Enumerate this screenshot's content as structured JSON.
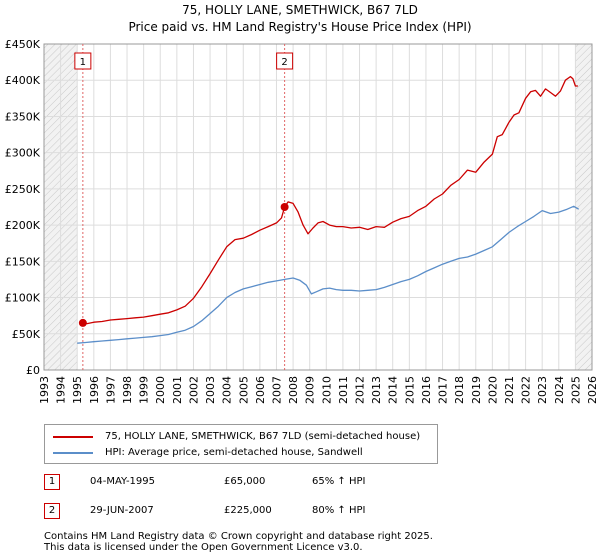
{
  "chart_data": {
    "type": "line",
    "title": "75, HOLLY LANE, SMETHWICK, B67 7LD",
    "subtitle": "Price paid vs. HM Land Registry's House Price Index (HPI)",
    "xlim": [
      1993.0,
      2026.0
    ],
    "ylim": [
      0,
      450000
    ],
    "y_ticks": [
      0,
      50000,
      100000,
      150000,
      200000,
      250000,
      300000,
      350000,
      400000,
      450000
    ],
    "y_tick_labels": [
      "£0",
      "£50K",
      "£100K",
      "£150K",
      "£200K",
      "£250K",
      "£300K",
      "£350K",
      "£400K",
      "£450K"
    ],
    "x_ticks": [
      1993,
      1994,
      1995,
      1996,
      1997,
      1998,
      1999,
      2000,
      2001,
      2002,
      2003,
      2004,
      2005,
      2006,
      2007,
      2008,
      2009,
      2010,
      2011,
      2012,
      2013,
      2014,
      2015,
      2016,
      2017,
      2018,
      2019,
      2020,
      2021,
      2022,
      2023,
      2024,
      2025,
      2026
    ],
    "x_tick_labels": [
      "1993",
      "1994",
      "1995",
      "1996",
      "1997",
      "1998",
      "1999",
      "2000",
      "2001",
      "2002",
      "2003",
      "2004",
      "2005",
      "2006",
      "2007",
      "2008",
      "2009",
      "2010",
      "2011",
      "2012",
      "2013",
      "2014",
      "2015",
      "2016",
      "2017",
      "2018",
      "2019",
      "2020",
      "2021",
      "2022",
      "2023",
      "2024",
      "2025",
      "2026"
    ],
    "hatched_ranges": [
      [
        1993.0,
        1995.0
      ],
      [
        2025.0,
        2026.0
      ]
    ],
    "series": [
      {
        "name": "75, HOLLY LANE, SMETHWICK, B67 7LD (semi-detached house)",
        "color": "#cc0000",
        "x": [
          1995.34,
          1995.6,
          1996.0,
          1996.5,
          1997.0,
          1997.5,
          1998.0,
          1998.5,
          1999.0,
          1999.5,
          2000.0,
          2000.5,
          2001.0,
          2001.5,
          2002.0,
          2002.5,
          2003.0,
          2003.5,
          2004.0,
          2004.5,
          2005.0,
          2005.5,
          2006.0,
          2006.5,
          2007.0,
          2007.3,
          2007.49,
          2007.7,
          2008.0,
          2008.3,
          2008.6,
          2008.9,
          2009.2,
          2009.5,
          2009.8,
          2010.2,
          2010.6,
          2011.0,
          2011.5,
          2012.0,
          2012.5,
          2013.0,
          2013.5,
          2014.0,
          2014.5,
          2015.0,
          2015.5,
          2016.0,
          2016.5,
          2017.0,
          2017.5,
          2018.0,
          2018.5,
          2019.0,
          2019.5,
          2020.0,
          2020.3,
          2020.6,
          2021.0,
          2021.3,
          2021.6,
          2022.0,
          2022.3,
          2022.6,
          2022.9,
          2023.2,
          2023.5,
          2023.8,
          2024.1,
          2024.4,
          2024.7,
          2024.85,
          2025.0,
          2025.15
        ],
        "y": [
          65000,
          64000,
          66000,
          67000,
          69000,
          70000,
          71000,
          72000,
          73000,
          75000,
          77000,
          79000,
          83000,
          88000,
          99000,
          115000,
          133000,
          152000,
          170000,
          180000,
          182000,
          187000,
          193000,
          198000,
          203000,
          210000,
          225000,
          232000,
          230000,
          218000,
          200000,
          188000,
          196000,
          203000,
          205000,
          200000,
          198000,
          198000,
          196000,
          197000,
          194000,
          198000,
          197000,
          204000,
          209000,
          212000,
          220000,
          226000,
          236000,
          243000,
          255000,
          263000,
          276000,
          273000,
          287000,
          298000,
          322000,
          325000,
          342000,
          352000,
          355000,
          375000,
          384000,
          386000,
          378000,
          388000,
          383000,
          378000,
          385000,
          400000,
          405000,
          402000,
          392000,
          392000
        ]
      },
      {
        "name": "HPI: Average price, semi-detached house, Sandwell",
        "color": "#5b8ec9",
        "x": [
          1995.0,
          1995.5,
          1996.0,
          1996.5,
          1997.0,
          1997.5,
          1998.0,
          1998.5,
          1999.0,
          1999.5,
          2000.0,
          2000.5,
          2001.0,
          2001.5,
          2002.0,
          2002.5,
          2003.0,
          2003.5,
          2004.0,
          2004.5,
          2005.0,
          2005.5,
          2006.0,
          2006.5,
          2007.0,
          2007.5,
          2008.0,
          2008.4,
          2008.8,
          2009.1,
          2009.4,
          2009.8,
          2010.2,
          2010.6,
          2011.0,
          2011.5,
          2012.0,
          2012.5,
          2013.0,
          2013.5,
          2014.0,
          2014.5,
          2015.0,
          2015.5,
          2016.0,
          2016.5,
          2017.0,
          2017.5,
          2018.0,
          2018.5,
          2019.0,
          2019.5,
          2020.0,
          2020.5,
          2021.0,
          2021.5,
          2022.0,
          2022.5,
          2023.0,
          2023.5,
          2024.0,
          2024.5,
          2024.9,
          2025.2
        ],
        "y": [
          37000,
          38000,
          39000,
          40000,
          41000,
          42000,
          43000,
          44000,
          45000,
          46000,
          47500,
          49000,
          52000,
          55000,
          60000,
          68000,
          78000,
          88000,
          100000,
          107000,
          112000,
          115000,
          118000,
          121000,
          123000,
          125000,
          127000,
          124000,
          117000,
          105000,
          108000,
          112000,
          113000,
          111000,
          110000,
          110000,
          109000,
          110000,
          111000,
          114000,
          118000,
          122000,
          125000,
          130000,
          136000,
          141000,
          146000,
          150000,
          154000,
          156000,
          160000,
          165000,
          170000,
          180000,
          190000,
          198000,
          205000,
          212000,
          220000,
          216000,
          218000,
          222000,
          226000,
          222000
        ]
      }
    ],
    "markers": [
      {
        "label": "1",
        "x": 1995.34,
        "y": 65000
      },
      {
        "label": "2",
        "x": 2007.49,
        "y": 225000
      }
    ]
  },
  "legend": {
    "property_label": "75, HOLLY LANE, SMETHWICK, B67 7LD (semi-detached house)",
    "hpi_label": "HPI: Average price, semi-detached house, Sandwell"
  },
  "transactions": [
    {
      "num": "1",
      "date": "04-MAY-1995",
      "price": "£65,000",
      "hpi": "65% ↑ HPI"
    },
    {
      "num": "2",
      "date": "29-JUN-2007",
      "price": "£225,000",
      "hpi": "80% ↑ HPI"
    }
  ],
  "footer": {
    "line1": "Contains HM Land Registry data © Crown copyright and database right 2025.",
    "line2": "This data is licensed under the Open Government Licence v3.0."
  }
}
